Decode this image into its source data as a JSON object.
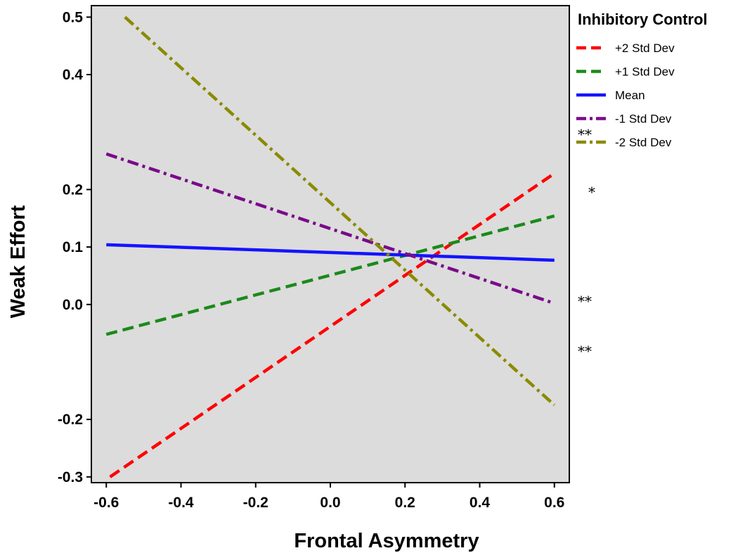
{
  "chart_data": {
    "type": "line",
    "xlabel": "Frontal Asymmetry",
    "ylabel": "Weak Effort",
    "xlim": [
      -0.64,
      0.64
    ],
    "ylim": [
      -0.31,
      0.52
    ],
    "xticks": [
      "-0.6",
      "-0.4",
      "-0.2",
      "0.0",
      "0.2",
      "0.4",
      "0.6"
    ],
    "yticks": [
      "-0.3",
      "-0.2",
      "0.0",
      "0.1",
      "0.2",
      "0.4",
      "0.5"
    ],
    "grid": false,
    "legend": {
      "title": "Inhibitory Control",
      "placement": "right"
    },
    "series": [
      {
        "name": "+2 Std Dev",
        "color": "#ff0000",
        "dash": "dashed",
        "x": [
          -0.59,
          0.6
        ],
        "y": [
          -0.3,
          0.228
        ]
      },
      {
        "name": "+1 Std Dev",
        "color": "#1a8a1a",
        "dash": "dashed",
        "x": [
          -0.6,
          0.6
        ],
        "y": [
          -0.052,
          0.154
        ]
      },
      {
        "name": "Mean",
        "color": "#1414ff",
        "dash": "solid",
        "x": [
          -0.6,
          0.6
        ],
        "y": [
          0.104,
          0.077
        ]
      },
      {
        "name": "-1 Std Dev",
        "color": "#7a0a8a",
        "dash": "dashdot",
        "x": [
          -0.6,
          0.6
        ],
        "y": [
          0.262,
          0.002
        ]
      },
      {
        "name": "-2 Std Dev",
        "color": "#8a8a00",
        "dash": "dashdot",
        "x": [
          -0.55,
          0.6
        ],
        "y": [
          0.5,
          -0.175
        ]
      }
    ],
    "annotations": [
      "**",
      "*",
      "**",
      "**"
    ]
  }
}
